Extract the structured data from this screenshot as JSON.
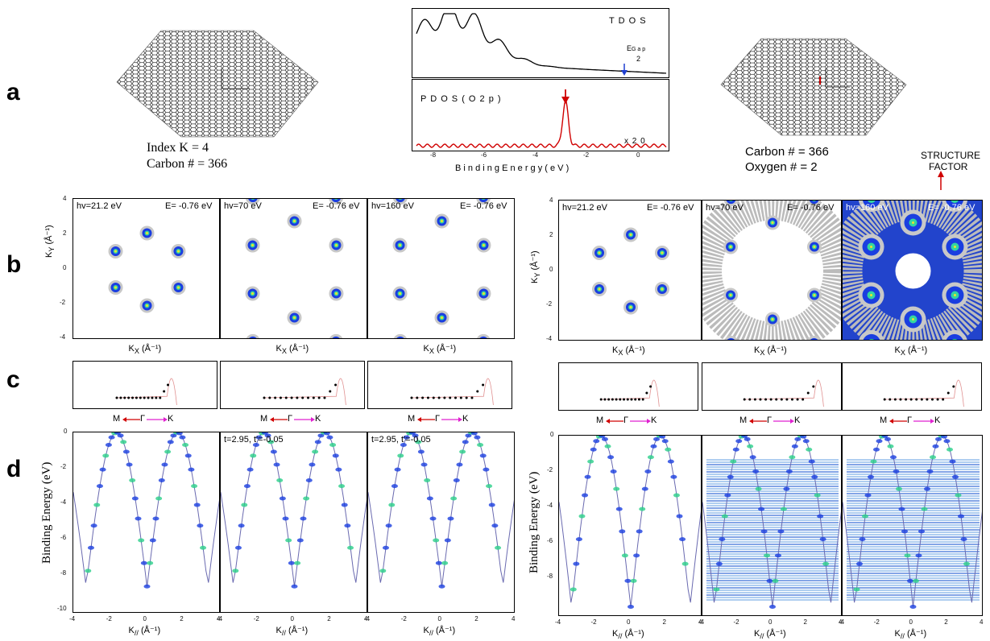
{
  "panels": {
    "a": "a",
    "b": "b",
    "c": "c",
    "d": "d"
  },
  "structure_left": {
    "index_text": "Index K  = 4",
    "carbon_text": "Carbon # = 366"
  },
  "structure_right": {
    "carbon_text": "Carbon # = 366",
    "oxygen_text": "Oxygen # = 2",
    "structure_factor_line1": "STRUCTURE",
    "structure_factor_line2": "FACTOR"
  },
  "dos": {
    "tdos_label": "T D O S",
    "egap_label": "E",
    "egap_sub": "G a p",
    "egap_denominator": "2",
    "pdos_label": "P D O S  ( O  2 p )",
    "scale_label": "x 2 0",
    "xlabel": "B i n d i n g   E n e r g y ( e V )",
    "xticks": [
      "-8",
      "-6",
      "-4",
      "-2",
      "0"
    ],
    "colors": {
      "tdos": "#000000",
      "pdos": "#d00000",
      "arrow_blue": "#1f3fd0",
      "arrow_red": "#d00000"
    }
  },
  "row_b": {
    "maps": [
      {
        "hv": "hv=21.2 eV",
        "E": "E= -0.76 eV"
      },
      {
        "hv": "hv=70 eV",
        "E": "E= -0.76 eV"
      },
      {
        "hv": "hv=160 eV",
        "E": "E= -0.76 eV"
      },
      {
        "hv": "hv=21.2 eV",
        "E": "E= -0.76 eV"
      },
      {
        "hv": "hv=70 eV",
        "E": "E= -0.76 eV"
      },
      {
        "hv": "hv=160 eV",
        "E": "E= -0.76 eV"
      }
    ],
    "ylabel": "K",
    "ylabel_sub": "Y",
    "ylabel_unit": " (Å⁻¹)",
    "xlabel": "K",
    "xlabel_sub": "X",
    "xlabel_unit": " (Å⁻¹)",
    "yticks": [
      "4",
      "2",
      "0",
      "-2",
      "-4"
    ]
  },
  "row_c": {
    "direction": {
      "M": "M",
      "Gamma": "Γ",
      "K": "K"
    }
  },
  "row_d": {
    "ylabel": "Binding Energy (eV)",
    "xlabel": "K",
    "xlabel_sub": "//",
    "xlabel_unit": " (Å⁻¹)",
    "yticks_left": [
      "0",
      "-2",
      "-4",
      "-6",
      "-8",
      "-10"
    ],
    "yticks_right": [
      "0",
      "-2",
      "-4",
      "-6",
      "-8"
    ],
    "xticks": [
      "-4",
      "-2",
      "0",
      "2",
      "4"
    ],
    "annotations": [
      "t=2.95, t'=-0.05",
      "t=2.95, t'=-0.05"
    ]
  }
}
